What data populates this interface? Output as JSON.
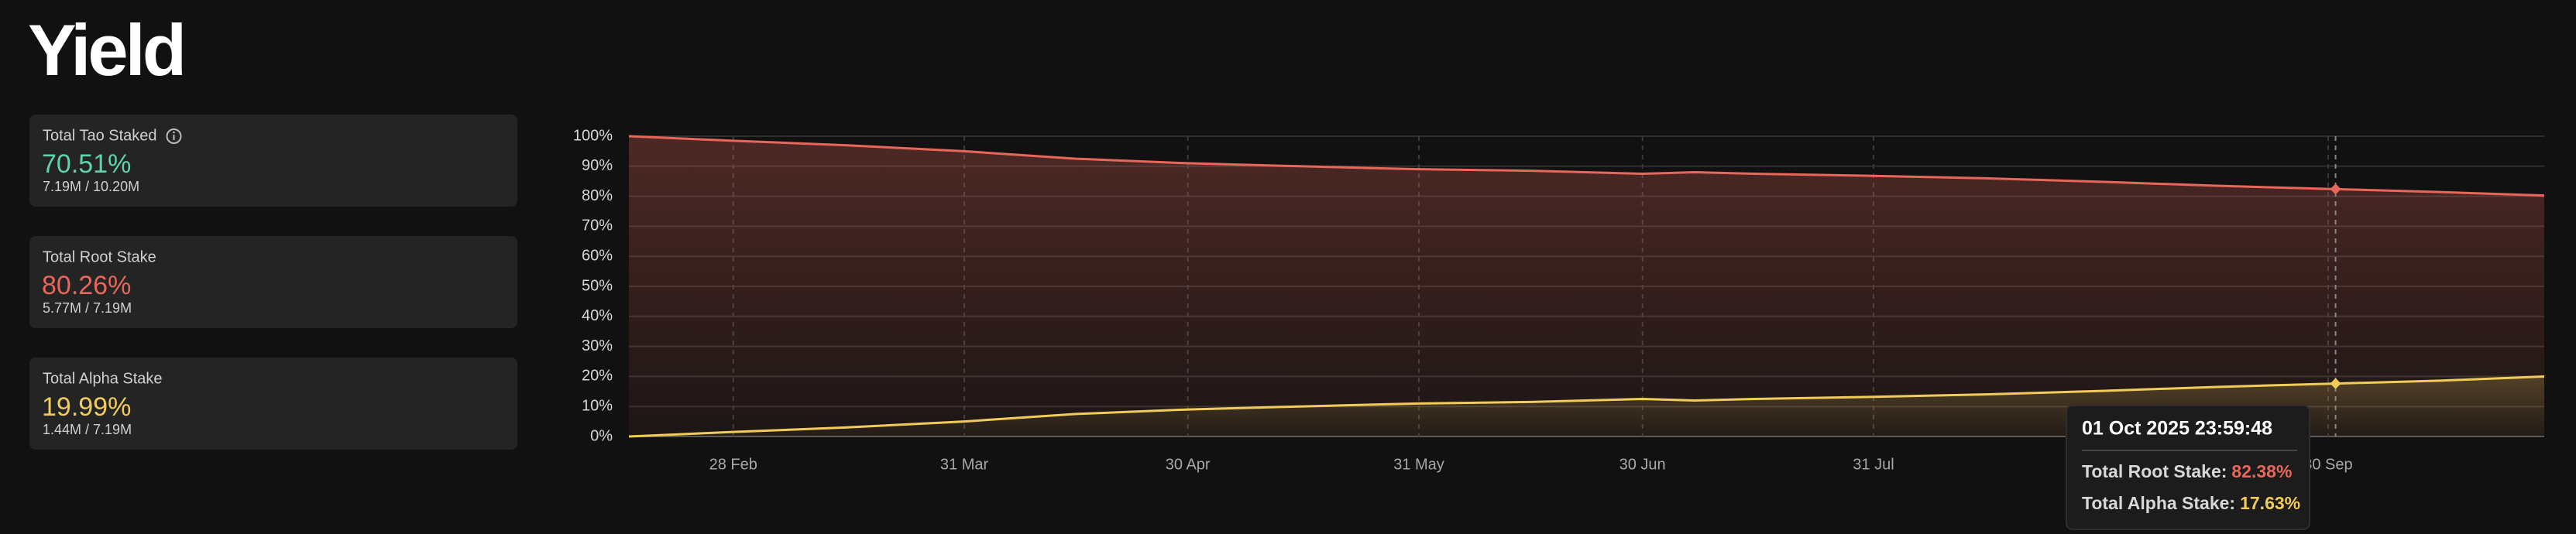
{
  "header": {
    "title": "Yield"
  },
  "cards": [
    {
      "title": "Total Tao Staked",
      "value": "70.51%",
      "detail": "7.19M / 10.20M",
      "color": "#5fd4a8"
    },
    {
      "title": "Total Root Stake",
      "value": "80.26%",
      "detail": "5.77M / 7.19M",
      "color": "#e8665a"
    },
    {
      "title": "Total Alpha Stake",
      "value": "19.99%",
      "detail": "1.44M / 7.19M",
      "color": "#f2cc5a"
    }
  ],
  "chart_data": {
    "type": "line",
    "x": [
      "2025-02-14",
      "2025-02-28",
      "2025-03-15",
      "2025-03-31",
      "2025-04-15",
      "2025-04-30",
      "2025-05-15",
      "2025-05-31",
      "2025-06-15",
      "2025-06-30",
      "2025-07-07",
      "2025-07-15",
      "2025-07-31",
      "2025-08-15",
      "2025-08-31",
      "2025-09-15",
      "2025-10-01",
      "2025-10-15",
      "2025-10-29"
    ],
    "series": [
      {
        "name": "Total Root Stake",
        "color": "#e8665a",
        "values": [
          100,
          98.5,
          97,
          95,
          92.5,
          91,
          90,
          89,
          88.5,
          87.5,
          88,
          87.5,
          86.8,
          86,
          84.8,
          83.5,
          82.38,
          81.4,
          80.26
        ]
      },
      {
        "name": "Total Alpha Stake",
        "color": "#f2cc5a",
        "values": [
          0,
          1.5,
          3,
          5,
          7.5,
          9,
          10,
          11,
          11.5,
          12.5,
          12,
          12.5,
          13.2,
          14,
          15.2,
          16.5,
          17.63,
          18.6,
          19.99
        ]
      }
    ],
    "xlim": [
      "2025-02-14",
      "2025-10-29"
    ],
    "xticks": [
      {
        "value": "2025-02-28",
        "label": "28 Feb"
      },
      {
        "value": "2025-03-31",
        "label": "31 Mar"
      },
      {
        "value": "2025-04-30",
        "label": "30 Apr"
      },
      {
        "value": "2025-05-31",
        "label": "31 May"
      },
      {
        "value": "2025-06-30",
        "label": "30 Jun"
      },
      {
        "value": "2025-07-31",
        "label": "31 Jul"
      },
      {
        "value": "2025-09-30",
        "label": "30 Sep"
      }
    ],
    "ylim": [
      0,
      100
    ],
    "yticks": [
      {
        "value": 0,
        "label": "0%"
      },
      {
        "value": 10,
        "label": "10%"
      },
      {
        "value": 20,
        "label": "20%"
      },
      {
        "value": 30,
        "label": "30%"
      },
      {
        "value": 40,
        "label": "40%"
      },
      {
        "value": 50,
        "label": "50%"
      },
      {
        "value": 60,
        "label": "60%"
      },
      {
        "value": 70,
        "label": "70%"
      },
      {
        "value": 80,
        "label": "80%"
      },
      {
        "value": 90,
        "label": "90%"
      },
      {
        "value": 100,
        "label": "100%"
      }
    ],
    "grid": true,
    "tooltip": {
      "index": 16,
      "title": "01 Oct 2025 23:59:48",
      "items": [
        {
          "label": "Total Root Stake:",
          "value": "82.38%"
        },
        {
          "label": "Total Alpha Stake:",
          "value": "17.63%"
        }
      ]
    }
  }
}
